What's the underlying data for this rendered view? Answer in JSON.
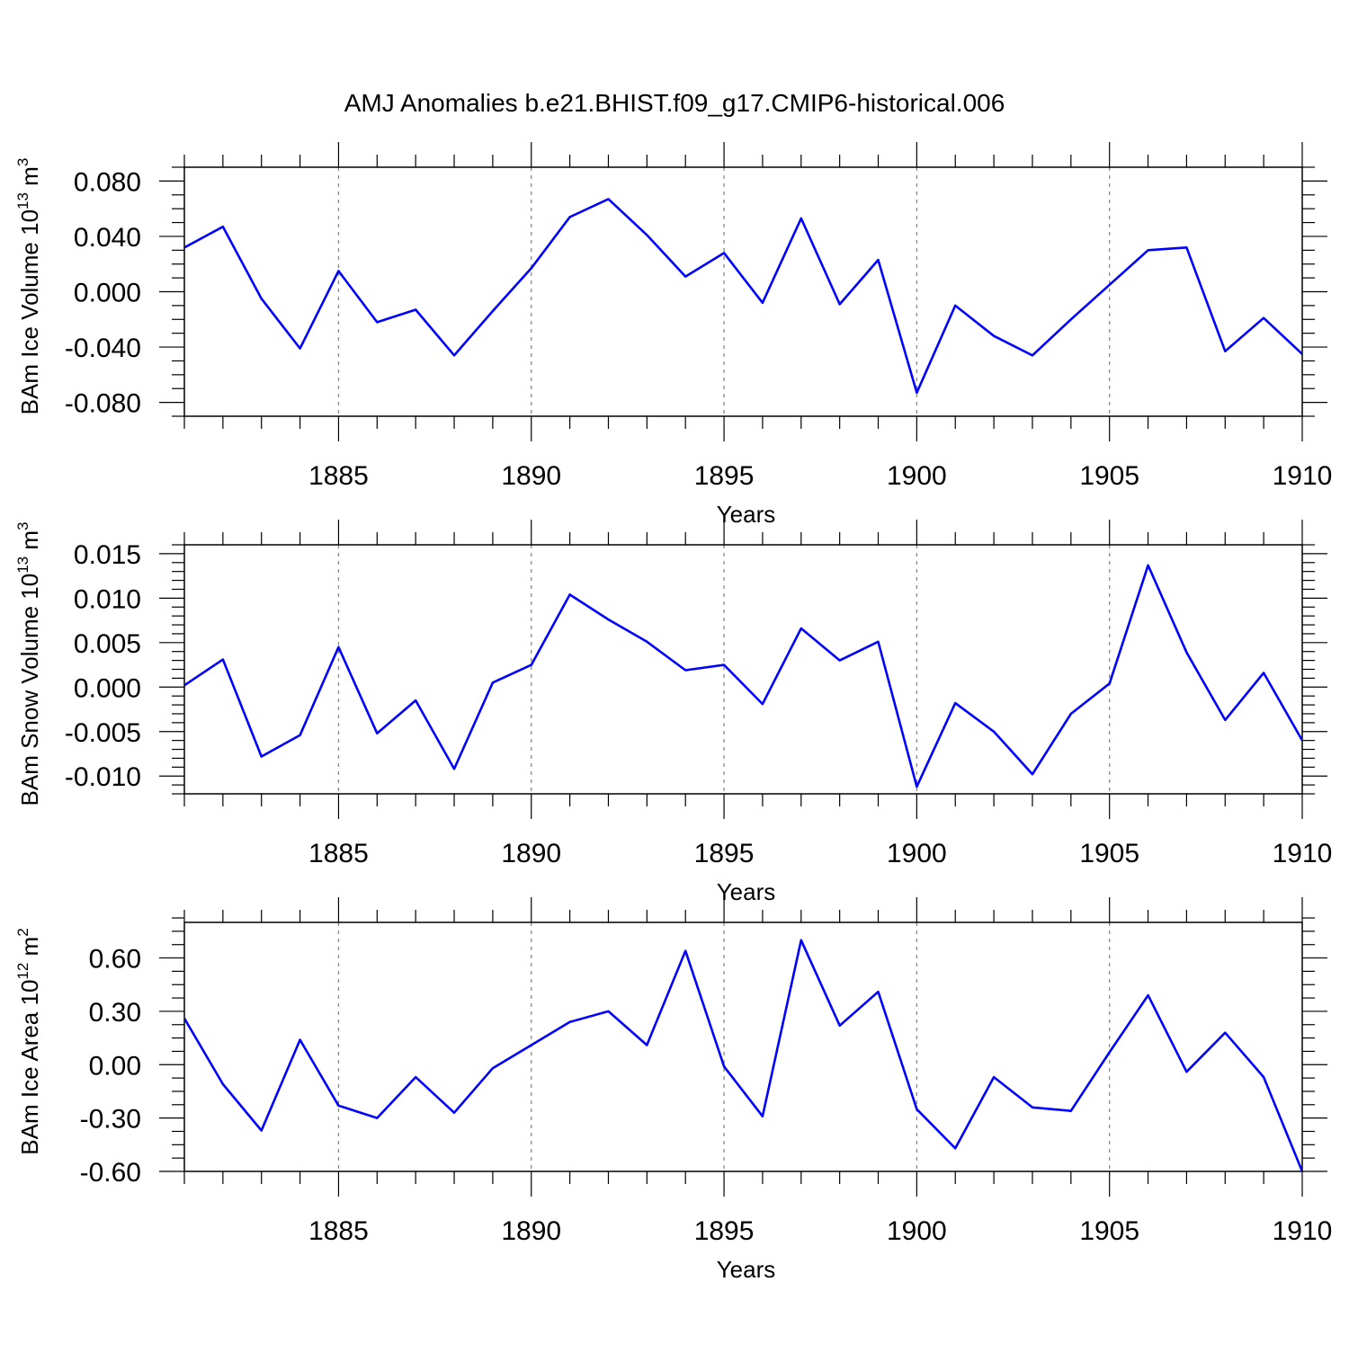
{
  "figure": {
    "title": "AMJ Anomalies b.e21.BHIST.f09_g17.CMIP6-historical.006",
    "line_color": "#0000ff",
    "grid_color": "#888888"
  },
  "chart_data": [
    {
      "type": "line",
      "title": "AMJ Anomalies b.e21.BHIST.f09_g17.CMIP6-historical.006",
      "xlabel": "Years",
      "ylabel_main": "BAm Ice Volume 10",
      "ylabel_sup": "13",
      "ylabel_unit": " m",
      "ylabel_unit_sup": "3",
      "xlim": [
        1881,
        1910
      ],
      "ylim": [
        -0.09,
        0.09
      ],
      "x_ticks": [
        1885,
        1890,
        1895,
        1900,
        1905,
        1910
      ],
      "x_tick_labels": [
        "1885",
        "1890",
        "1895",
        "1900",
        "1905",
        "1910"
      ],
      "y_ticks": [
        -0.08,
        -0.04,
        0.0,
        0.04,
        0.08
      ],
      "y_tick_labels": [
        "-0.080",
        "-0.040",
        "0.000",
        "0.040",
        "0.080"
      ],
      "y_minor_step": 0.01,
      "x": [
        1881,
        1882,
        1883,
        1884,
        1885,
        1886,
        1887,
        1888,
        1889,
        1890,
        1891,
        1892,
        1893,
        1894,
        1895,
        1896,
        1897,
        1898,
        1899,
        1900,
        1901,
        1902,
        1903,
        1904,
        1905,
        1906,
        1907,
        1908,
        1909,
        1910
      ],
      "values": [
        0.032,
        0.047,
        -0.005,
        -0.041,
        0.015,
        -0.022,
        -0.013,
        -0.046,
        -0.014,
        0.017,
        0.054,
        0.067,
        0.041,
        0.011,
        0.028,
        -0.008,
        0.053,
        -0.009,
        0.023,
        -0.073,
        -0.01,
        -0.032,
        -0.046,
        -0.02,
        0.005,
        0.03,
        0.032,
        -0.043,
        -0.019,
        -0.045
      ]
    },
    {
      "type": "line",
      "xlabel": "Years",
      "ylabel_main": "BAm Snow Volume 10",
      "ylabel_sup": "13",
      "ylabel_unit": " m",
      "ylabel_unit_sup": "3",
      "xlim": [
        1881,
        1910
      ],
      "ylim": [
        -0.012,
        0.016
      ],
      "x_ticks": [
        1885,
        1890,
        1895,
        1900,
        1905,
        1910
      ],
      "x_tick_labels": [
        "1885",
        "1890",
        "1895",
        "1900",
        "1905",
        "1910"
      ],
      "y_ticks": [
        -0.01,
        -0.005,
        0.0,
        0.005,
        0.01,
        0.015
      ],
      "y_tick_labels": [
        "-0.010",
        "-0.005",
        "0.000",
        "0.005",
        "0.010",
        "0.015"
      ],
      "y_minor_step": 0.001,
      "x": [
        1881,
        1882,
        1883,
        1884,
        1885,
        1886,
        1887,
        1888,
        1889,
        1890,
        1891,
        1892,
        1893,
        1894,
        1895,
        1896,
        1897,
        1898,
        1899,
        1900,
        1901,
        1902,
        1903,
        1904,
        1905,
        1906,
        1907,
        1908,
        1909,
        1910
      ],
      "values": [
        0.0002,
        0.0031,
        -0.0078,
        -0.0054,
        0.0045,
        -0.0052,
        -0.0015,
        -0.0092,
        0.0005,
        0.0025,
        0.0104,
        0.0076,
        0.0051,
        0.0019,
        0.0025,
        -0.0019,
        0.0066,
        0.003,
        0.0051,
        -0.0112,
        -0.0018,
        -0.005,
        -0.0098,
        -0.003,
        0.0004,
        0.0137,
        0.0039,
        -0.0037,
        0.0016,
        -0.006
      ]
    },
    {
      "type": "line",
      "xlabel": "Years",
      "ylabel_main": "BAm Ice Area 10",
      "ylabel_sup": "12",
      "ylabel_unit": " m",
      "ylabel_unit_sup": "2",
      "xlim": [
        1881,
        1910
      ],
      "ylim": [
        -0.6,
        0.8
      ],
      "x_ticks": [
        1885,
        1890,
        1895,
        1900,
        1905,
        1910
      ],
      "x_tick_labels": [
        "1885",
        "1890",
        "1895",
        "1900",
        "1905",
        "1910"
      ],
      "y_ticks": [
        -0.6,
        -0.3,
        0.0,
        0.3,
        0.6
      ],
      "y_tick_labels": [
        "-0.60",
        "-0.30",
        "0.00",
        "0.30",
        "0.60"
      ],
      "y_minor_step": 0.075,
      "x": [
        1881,
        1882,
        1883,
        1884,
        1885,
        1886,
        1887,
        1888,
        1889,
        1890,
        1891,
        1892,
        1893,
        1894,
        1895,
        1896,
        1897,
        1898,
        1899,
        1900,
        1901,
        1902,
        1903,
        1904,
        1905,
        1906,
        1907,
        1908,
        1909,
        1910
      ],
      "values": [
        0.26,
        -0.11,
        -0.37,
        0.14,
        -0.23,
        -0.3,
        -0.07,
        -0.27,
        -0.02,
        0.11,
        0.24,
        0.3,
        0.11,
        0.64,
        -0.01,
        -0.29,
        0.7,
        0.22,
        0.41,
        -0.25,
        -0.47,
        -0.07,
        -0.24,
        -0.26,
        0.07,
        0.39,
        -0.04,
        0.18,
        -0.07,
        -0.6
      ]
    }
  ]
}
